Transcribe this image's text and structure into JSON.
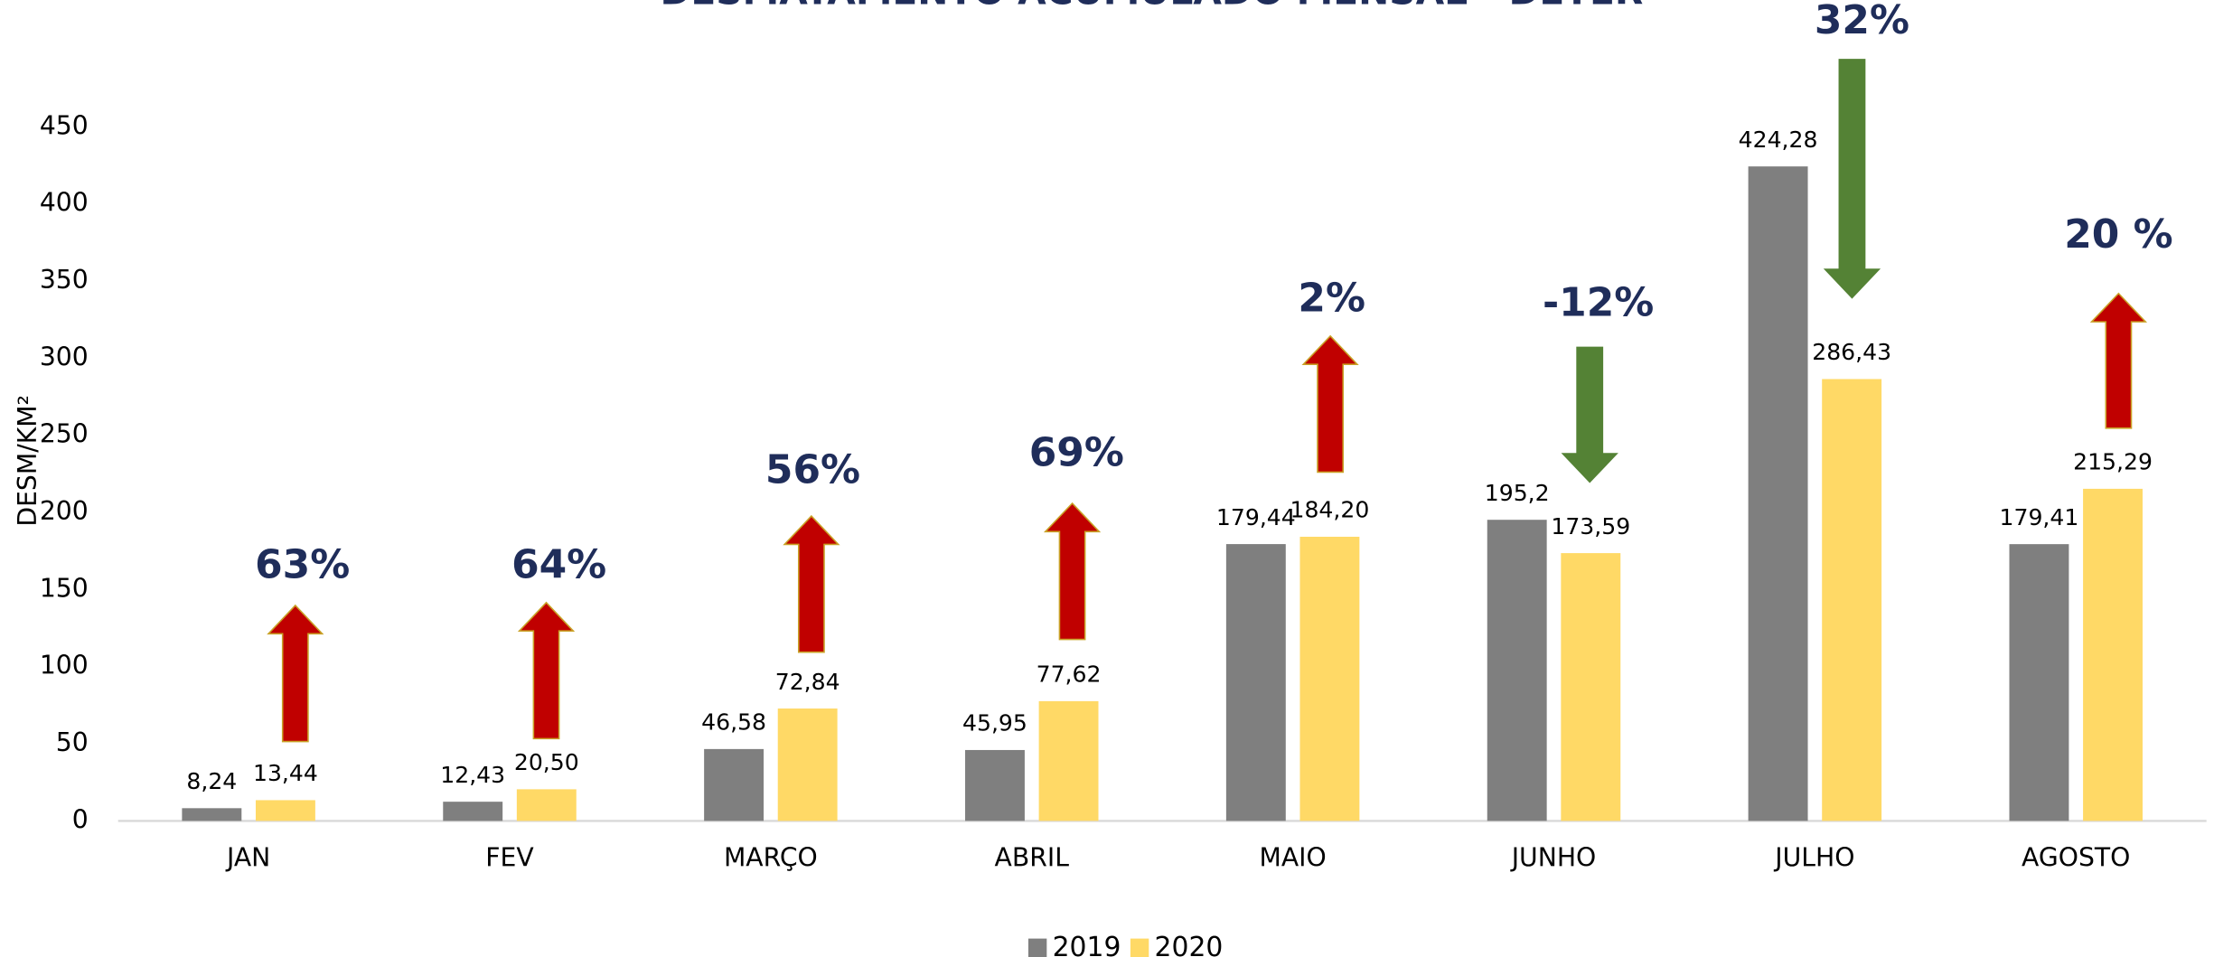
{
  "chart_data": {
    "type": "bar",
    "title": "DESMATAMENTO ACUMULADO MENSAL - DETER",
    "y_label": "DESM/KM²",
    "categories": [
      "JAN",
      "FEV",
      "MARÇO",
      "ABRIL",
      "MAIO",
      "JUNHO",
      "JULHO",
      "AGOSTO"
    ],
    "series": [
      {
        "name": "2019",
        "color": "#7f7f7f",
        "values": [
          8.24,
          12.43,
          46.58,
          45.95,
          179.44,
          195.2,
          424.28,
          179.41
        ],
        "value_labels": [
          "8,24",
          "12,43",
          "46,58",
          "45,95",
          "179,44",
          "195,2",
          "424,28",
          "179,41"
        ]
      },
      {
        "name": "2020",
        "color": "#ffd966",
        "values": [
          13.44,
          20.5,
          72.84,
          77.62,
          184.2,
          173.59,
          286.43,
          215.29
        ],
        "value_labels": [
          "13,44",
          "20,50",
          "72,84",
          "77,62",
          "184,20",
          "173,59",
          "286,43",
          "215,29"
        ]
      }
    ],
    "annotations": [
      "63%",
      "64%",
      "56%",
      "69%",
      "2%",
      "-12%",
      "32%",
      "20 %"
    ],
    "arrow_directions": [
      "up",
      "up",
      "up",
      "up",
      "up",
      "down",
      "down",
      "up"
    ],
    "arrow_colors": [
      "#c00000",
      "#c00000",
      "#c00000",
      "#c00000",
      "#c00000",
      "#548235",
      "#548235",
      "#c00000"
    ],
    "ylim": [
      0,
      500
    ],
    "yticks": [
      0,
      50,
      100,
      150,
      200,
      250,
      300,
      350,
      400,
      450
    ],
    "grid": false,
    "legend": "bottom"
  }
}
